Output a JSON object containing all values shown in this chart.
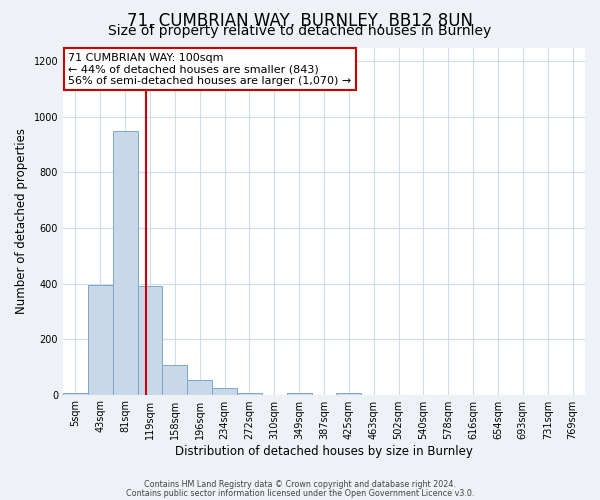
{
  "title": "71, CUMBRIAN WAY, BURNLEY, BB12 8UN",
  "subtitle": "Size of property relative to detached houses in Burnley",
  "xlabel": "Distribution of detached houses by size in Burnley",
  "ylabel": "Number of detached properties",
  "bar_labels": [
    "5sqm",
    "43sqm",
    "81sqm",
    "119sqm",
    "158sqm",
    "196sqm",
    "234sqm",
    "272sqm",
    "310sqm",
    "349sqm",
    "387sqm",
    "425sqm",
    "463sqm",
    "502sqm",
    "540sqm",
    "578sqm",
    "616sqm",
    "654sqm",
    "693sqm",
    "731sqm",
    "769sqm"
  ],
  "bar_values": [
    5,
    395,
    950,
    390,
    108,
    52,
    22,
    5,
    0,
    5,
    0,
    5,
    0,
    0,
    0,
    0,
    0,
    0,
    0,
    0,
    0
  ],
  "bar_color": "#c8d8e8",
  "bar_edge_color": "#7aa8cc",
  "property_line_x": 2.85,
  "property_line_color": "#cc0000",
  "annotation_line1": "71 CUMBRIAN WAY: 100sqm",
  "annotation_line2": "← 44% of detached houses are smaller (843)",
  "annotation_line3": "56% of semi-detached houses are larger (1,070) →",
  "annotation_box_color": "#ffffff",
  "annotation_box_edge": "#cc0000",
  "ylim": [
    0,
    1250
  ],
  "yticks": [
    0,
    200,
    400,
    600,
    800,
    1000,
    1200
  ],
  "footer_line1": "Contains HM Land Registry data © Crown copyright and database right 2024.",
  "footer_line2": "Contains public sector information licensed under the Open Government Licence v3.0.",
  "bg_color": "#eef2f6",
  "plot_bg_color": "#ffffff",
  "grid_color": "#d0dce8",
  "title_fontsize": 12,
  "subtitle_fontsize": 10,
  "axis_label_fontsize": 8.5,
  "tick_fontsize": 7,
  "annotation_fontsize": 8,
  "footer_fontsize": 5.8
}
